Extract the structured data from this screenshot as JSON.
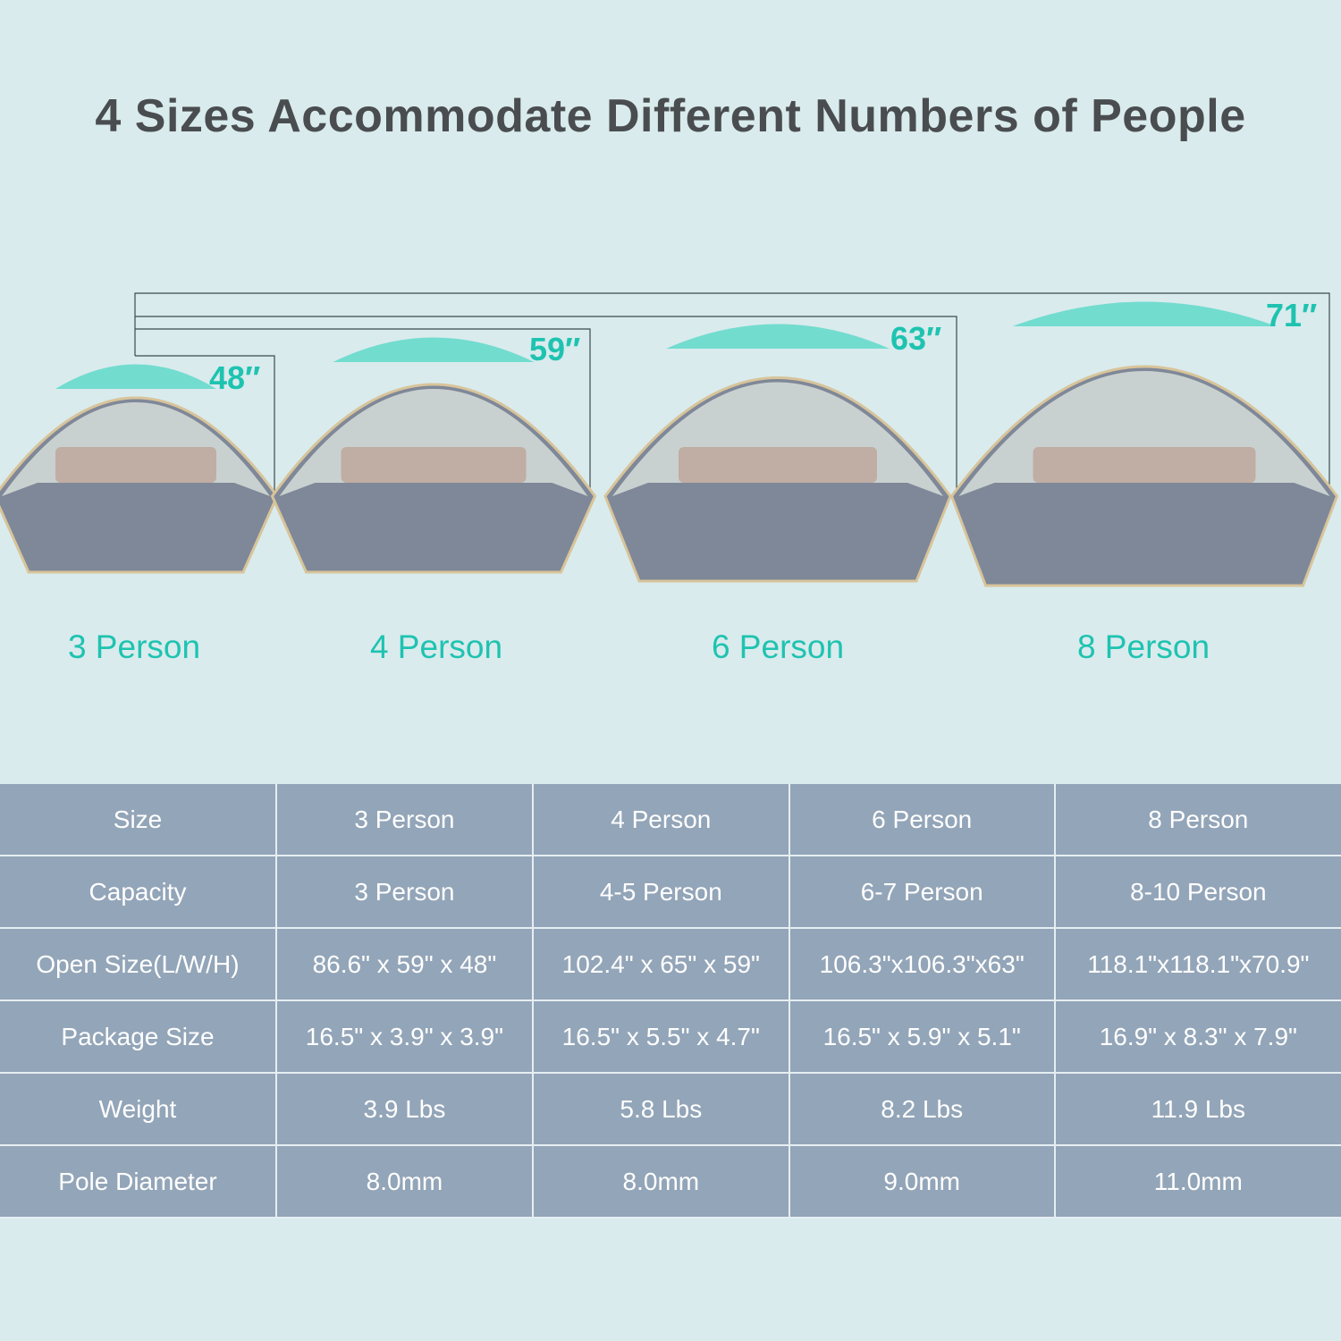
{
  "title": "4 Sizes Accommodate Different Numbers of People",
  "colors": {
    "accent": "#1ec3b0",
    "background": "#d9ebed",
    "table": "#93a5b8",
    "title": "#4a4d50"
  },
  "heights": [
    "48″",
    "59″",
    "63″",
    "71″"
  ],
  "sizes": [
    "3 Person",
    "4 Person",
    "6 Person",
    "8 Person"
  ],
  "table": {
    "rows": [
      {
        "header": "Size",
        "cells": [
          "3 Person",
          "4 Person",
          "6 Person",
          "8 Person"
        ]
      },
      {
        "header": "Capacity",
        "cells": [
          "3 Person",
          "4-5 Person",
          "6-7 Person",
          "8-10 Person"
        ]
      },
      {
        "header": "Open Size(L/W/H)",
        "cells": [
          "86.6\" x 59\" x 48\"",
          "102.4\" x 65\" x 59\"",
          "106.3\"x106.3\"x63\"",
          "118.1\"x118.1\"x70.9\""
        ]
      },
      {
        "header": "Package Size",
        "cells": [
          "16.5\" x 3.9\" x 3.9\"",
          "16.5\" x 5.5\" x 4.7\"",
          "16.5\" x 5.9\" x 5.1\"",
          "16.9\" x 8.3\" x 7.9\""
        ]
      },
      {
        "header": "Weight",
        "cells": [
          "3.9 Lbs",
          "5.8 Lbs",
          "8.2 Lbs",
          "11.9 Lbs"
        ]
      },
      {
        "header": "Pole Diameter",
        "cells": [
          "8.0mm",
          "8.0mm",
          "9.0mm",
          "11.0mm"
        ]
      }
    ]
  }
}
